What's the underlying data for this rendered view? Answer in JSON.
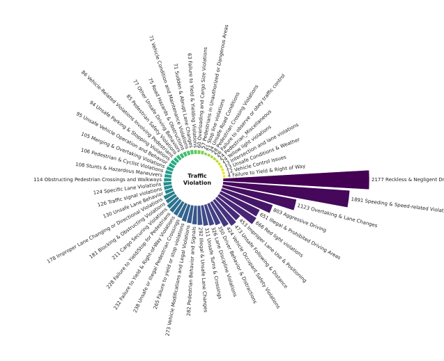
{
  "chart_data": {
    "type": "bar",
    "layout": "radial",
    "title": "Traffic Violation",
    "colormap": "viridis",
    "categories": [
      "Reckless & Negligent Driving",
      "Speeding & Speed-related Violations",
      "Overtaking & Lane Changes",
      "Aggressive Driving",
      "Illegal & Prohibited Driving Areas",
      "Red light violations",
      "Improper Lane Use & Positioning",
      "Unsafe Following & Distance",
      "Vehicle Occupant Safety Violations",
      "Driver Behavior & Distractions",
      "Lane Discipline Violations",
      "Unsafe Turns & Crossings",
      "Illegal & Unsafe Lane Changes",
      "Pedestrian Behavior and Signals",
      "Vehicle Modifications and Legal Violations",
      "Failure to yield or stop violations",
      "Unsafe or Illegal Pedestrian Crossings",
      "Failure to Yield & Right-of-Way Violations",
      "Failure to Yield/Stop for Pedestrians",
      "Cargo Securing Violations",
      "Blocking & Obstructing Violations",
      "Improper Lane Changing or Directional Violations",
      "Unsafe Lane Behavior",
      "Traffic signal violations",
      "Specific Lane Violations",
      "Obstructing Pedestrian Crossings and Walkways",
      "Stunts & Hazardous Maneuvers",
      "Pedestrian & Cyclist Violations",
      "Merging & Overtaking Violations",
      "Unsafe Vehicle Operation and Behavior",
      "Unsafe Parking & Stopping Violations",
      "Vehicle-Related Violations Involving Pedestrians",
      "Pedestrian Safety Violations",
      "Other Unsafe Driving Behaviors",
      "Road Hazards & Obstructions",
      "Vehicle Condition and Maintenance Violations",
      "Sudden & Abrupt Lane Changes",
      "Failure to Yield & Yielding Violations",
      "Overloading and Cargo Size Violations",
      "Pedestrians in Unauthorized or Dangerous Areas",
      "Stop line violations",
      "Unsafe Road Conditions",
      "Pedestrian Crossing Violations",
      "Failure to observe or obey traffic control",
      "Pedestrian_Miscellaneous",
      "Yellow light violations",
      "Intersection and lane violations",
      "Unsafe Conditions & Weather",
      "Vehicle Control Issues",
      "Failure to Yield & Right of Way"
    ],
    "values": [
      2177,
      1891,
      1123,
      803,
      651,
      666,
      453,
      473,
      424,
      350,
      326,
      311,
      292,
      282,
      273,
      265,
      238,
      232,
      228,
      211,
      181,
      178,
      130,
      126,
      124,
      114,
      108,
      106,
      105,
      95,
      94,
      86,
      85,
      77,
      75,
      71,
      71,
      63,
      60,
      57,
      41,
      34,
      28,
      26,
      24,
      24,
      13,
      13,
      12,
      4
    ]
  }
}
